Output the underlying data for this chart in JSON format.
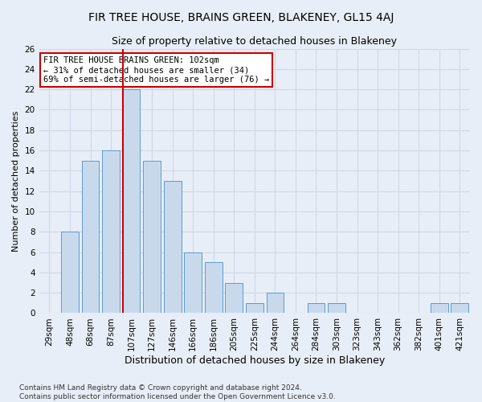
{
  "title": "FIR TREE HOUSE, BRAINS GREEN, BLAKENEY, GL15 4AJ",
  "subtitle": "Size of property relative to detached houses in Blakeney",
  "xlabel": "Distribution of detached houses by size in Blakeney",
  "ylabel": "Number of detached properties",
  "categories": [
    "29sqm",
    "48sqm",
    "68sqm",
    "87sqm",
    "107sqm",
    "127sqm",
    "146sqm",
    "166sqm",
    "186sqm",
    "205sqm",
    "225sqm",
    "244sqm",
    "264sqm",
    "284sqm",
    "303sqm",
    "323sqm",
    "343sqm",
    "362sqm",
    "382sqm",
    "401sqm",
    "421sqm"
  ],
  "values": [
    0,
    8,
    15,
    16,
    22,
    15,
    13,
    6,
    5,
    3,
    1,
    2,
    0,
    1,
    1,
    0,
    0,
    0,
    0,
    1,
    1
  ],
  "bar_color": "#c9d9ec",
  "bar_edge_color": "#5b9bd5",
  "vline_index": 4,
  "vline_color": "#cc0000",
  "annotation_text": "FIR TREE HOUSE BRAINS GREEN: 102sqm\n← 31% of detached houses are smaller (34)\n69% of semi-detached houses are larger (76) →",
  "annotation_box_edgecolor": "#cc0000",
  "annotation_box_facecolor": "#ffffff",
  "ylim": [
    0,
    26
  ],
  "yticks": [
    0,
    2,
    4,
    6,
    8,
    10,
    12,
    14,
    16,
    18,
    20,
    22,
    24,
    26
  ],
  "grid_color": "#d0d8e8",
  "bg_color": "#e8eef7",
  "footnote": "Contains HM Land Registry data © Crown copyright and database right 2024.\nContains public sector information licensed under the Open Government Licence v3.0.",
  "title_fontsize": 10,
  "subtitle_fontsize": 9,
  "xlabel_fontsize": 9,
  "ylabel_fontsize": 8,
  "tick_fontsize": 7.5,
  "annotation_fontsize": 7.5,
  "footnote_fontsize": 6.5
}
